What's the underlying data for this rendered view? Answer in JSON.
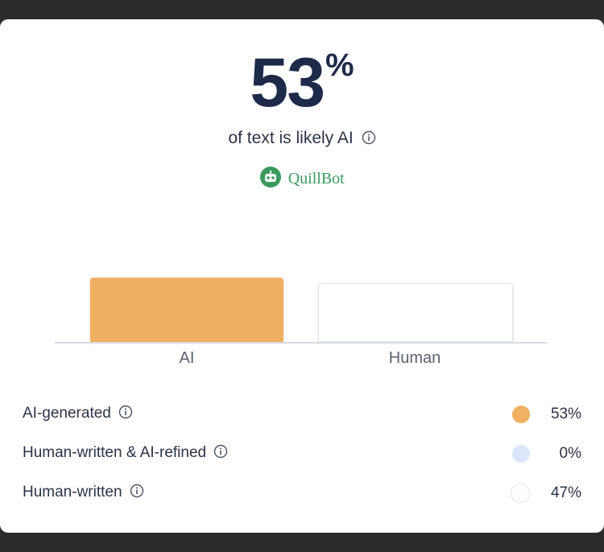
{
  "summary": {
    "percent": "53",
    "percent_symbol": "%",
    "subtitle": "of text is likely AI"
  },
  "brand": {
    "name": "QuillBot",
    "color": "#3a9a5c"
  },
  "chart_data": {
    "type": "bar",
    "categories": [
      "AI",
      "Human"
    ],
    "values": [
      53,
      47
    ],
    "colors": [
      "#f0b061",
      "#ffffff"
    ]
  },
  "legend": [
    {
      "label": "AI-generated",
      "value": "53%",
      "color": "#f0b061",
      "fraction": 0.53
    },
    {
      "label": "Human-written & AI-refined",
      "value": "0%",
      "color": "#dbe6fb",
      "fraction": 0.0
    },
    {
      "label": "Human-written",
      "value": "47%",
      "color": "#ffffff",
      "fraction": 0.47
    }
  ]
}
